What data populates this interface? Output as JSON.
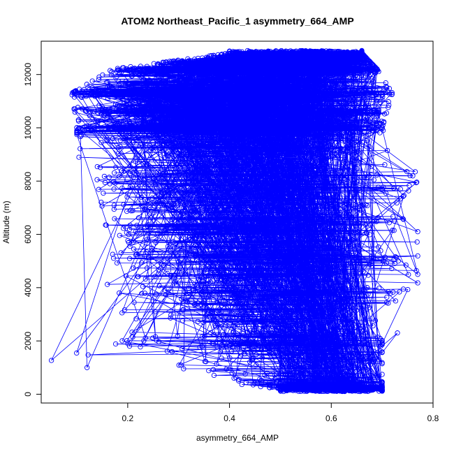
{
  "chart_data": {
    "type": "scatter",
    "title": "ATOM2 Northeast_Pacific_1 asymmetry_664_AMP",
    "xlabel": "asymmetry_664_AMP",
    "ylabel": "Altitude (m)",
    "xlim": [
      0.03,
      0.8
    ],
    "ylim": [
      -330,
      13250
    ],
    "xticks": [
      0.2,
      0.4,
      0.6,
      0.8
    ],
    "yticks": [
      0,
      2000,
      4000,
      6000,
      8000,
      10000,
      12000
    ],
    "xtick_labels": [
      "0.2",
      "0.4",
      "0.6",
      "0.8"
    ],
    "ytick_labels": [
      "0",
      "2000",
      "4000",
      "6000",
      "8000",
      "10000",
      "12000"
    ],
    "grid": false,
    "marker": "open-circle",
    "connected": true,
    "series_color": "#0000ff",
    "point_count_approx": 6000,
    "density_profile": [
      {
        "altitude": 200,
        "x_min": 0.5,
        "x_max": 0.7,
        "x_center": 0.61,
        "x_sd": 0.05
      },
      {
        "altitude": 800,
        "x_min": 0.22,
        "x_max": 0.7,
        "x_center": 0.56,
        "x_sd": 0.09
      },
      {
        "altitude": 1300,
        "x_min": 0.05,
        "x_max": 0.7,
        "x_center": 0.55,
        "x_sd": 0.1
      },
      {
        "altitude": 2000,
        "x_min": 0.18,
        "x_max": 0.7,
        "x_center": 0.52,
        "x_sd": 0.1
      },
      {
        "altitude": 3000,
        "x_min": 0.18,
        "x_max": 0.7,
        "x_center": 0.5,
        "x_sd": 0.11
      },
      {
        "altitude": 4000,
        "x_min": 0.16,
        "x_max": 0.77,
        "x_center": 0.5,
        "x_sd": 0.12
      },
      {
        "altitude": 5000,
        "x_min": 0.16,
        "x_max": 0.77,
        "x_center": 0.48,
        "x_sd": 0.12
      },
      {
        "altitude": 6000,
        "x_min": 0.16,
        "x_max": 0.77,
        "x_center": 0.47,
        "x_sd": 0.12
      },
      {
        "altitude": 7000,
        "x_min": 0.15,
        "x_max": 0.72,
        "x_center": 0.45,
        "x_sd": 0.12
      },
      {
        "altitude": 8000,
        "x_min": 0.14,
        "x_max": 0.77,
        "x_center": 0.44,
        "x_sd": 0.12
      },
      {
        "altitude": 9000,
        "x_min": 0.1,
        "x_max": 0.72,
        "x_center": 0.42,
        "x_sd": 0.13
      },
      {
        "altitude": 10000,
        "x_min": 0.1,
        "x_max": 0.7,
        "x_center": 0.42,
        "x_sd": 0.13
      },
      {
        "altitude": 11300,
        "x_min": 0.09,
        "x_max": 0.72,
        "x_center": 0.4,
        "x_sd": 0.14
      },
      {
        "altitude": 12200,
        "x_min": 0.17,
        "x_max": 0.69,
        "x_center": 0.45,
        "x_sd": 0.12
      },
      {
        "altitude": 12800,
        "x_min": 0.4,
        "x_max": 0.66,
        "x_center": 0.55,
        "x_sd": 0.07
      }
    ],
    "dense_altitude_bands": [
      200,
      10000,
      10600,
      11300,
      12200,
      12500,
      12800
    ],
    "outliers": [
      {
        "x": 0.05,
        "y": 1270
      },
      {
        "x": 0.12,
        "y": 1000
      },
      {
        "x": 0.73,
        "y": 2300
      },
      {
        "x": 0.77,
        "y": 4500
      },
      {
        "x": 0.77,
        "y": 6100
      },
      {
        "x": 0.765,
        "y": 8350
      }
    ]
  }
}
